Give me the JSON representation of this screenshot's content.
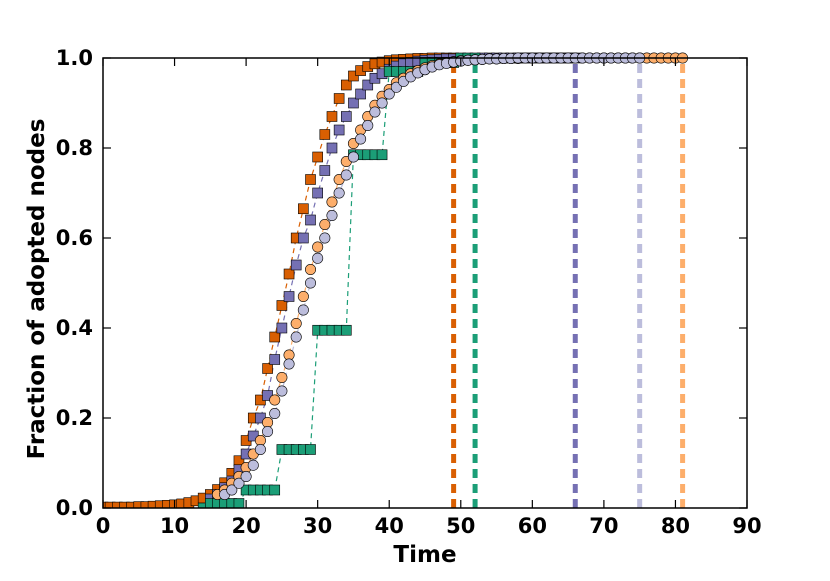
{
  "chart_data": {
    "type": "scatter",
    "title": "",
    "xlabel": "Time",
    "ylabel": "Fraction of adopted nodes",
    "xlim": [
      0,
      90
    ],
    "ylim": [
      0,
      1.0
    ],
    "xticks": [
      0,
      10,
      20,
      30,
      40,
      50,
      60,
      70,
      80,
      90
    ],
    "xtick_labels": [
      "0",
      "10",
      "20",
      "30",
      "40",
      "50",
      "60",
      "70",
      "80",
      "90"
    ],
    "yticks": [
      0,
      0.2,
      0.4,
      0.6,
      0.8,
      1.0
    ],
    "ytick_labels": [
      "0.0",
      "0.2",
      "0.4",
      "0.6",
      "0.8",
      "1.0"
    ],
    "grid": false,
    "legend": false,
    "series": [
      {
        "color": "#d95f02",
        "marker": "square",
        "values_desc": "sigmoid adoption curve",
        "x": [
          0,
          1,
          2,
          3,
          4,
          5,
          6,
          7,
          8,
          9,
          10,
          11,
          12,
          13,
          14,
          15,
          16,
          17,
          18,
          19,
          20,
          21,
          22,
          23,
          24,
          25,
          26,
          27,
          28,
          29,
          30,
          31,
          32,
          33,
          34,
          35,
          36,
          37,
          38,
          39,
          40,
          41,
          42,
          43,
          44,
          45,
          46,
          47,
          48,
          49
        ],
        "y": [
          0.002,
          0.002,
          0.002,
          0.002,
          0.002,
          0.003,
          0.003,
          0.004,
          0.005,
          0.006,
          0.007,
          0.009,
          0.012,
          0.016,
          0.022,
          0.03,
          0.041,
          0.056,
          0.077,
          0.105,
          0.15,
          0.2,
          0.24,
          0.31,
          0.38,
          0.45,
          0.52,
          0.6,
          0.665,
          0.73,
          0.78,
          0.83,
          0.87,
          0.91,
          0.94,
          0.96,
          0.972,
          0.981,
          0.987,
          0.991,
          0.994,
          0.996,
          0.997,
          0.998,
          0.999,
          0.999,
          1.0,
          1.0,
          1.0,
          1.0
        ],
        "cutoff": 49
      },
      {
        "color": "#7570b3",
        "marker": "square",
        "x": [
          15,
          16,
          17,
          18,
          19,
          20,
          21,
          22,
          23,
          24,
          25,
          26,
          27,
          28,
          29,
          30,
          31,
          32,
          33,
          34,
          35,
          36,
          37,
          38,
          39,
          40,
          41,
          42,
          43,
          44,
          45,
          46,
          47,
          48,
          49,
          50,
          51,
          52,
          53,
          54,
          55,
          56,
          57,
          58,
          59,
          60,
          61,
          62,
          63,
          64,
          65,
          66
        ],
        "y": [
          0.02,
          0.03,
          0.045,
          0.06,
          0.085,
          0.12,
          0.16,
          0.2,
          0.25,
          0.33,
          0.4,
          0.47,
          0.54,
          0.6,
          0.64,
          0.7,
          0.75,
          0.8,
          0.84,
          0.87,
          0.9,
          0.92,
          0.94,
          0.955,
          0.965,
          0.975,
          0.982,
          0.987,
          0.99,
          0.993,
          0.995,
          0.996,
          0.997,
          0.998,
          0.998,
          0.999,
          0.999,
          0.999,
          1.0,
          1.0,
          1.0,
          1.0,
          1.0,
          1.0,
          1.0,
          1.0,
          1.0,
          1.0,
          1.0,
          1.0,
          1.0,
          1.0
        ],
        "cutoff": 66
      },
      {
        "color": "#1b9e77",
        "marker": "square",
        "x": [
          14,
          15,
          16,
          17,
          18,
          19,
          20,
          21,
          22,
          23,
          24,
          25,
          26,
          27,
          28,
          29,
          30,
          31,
          32,
          33,
          34,
          35,
          36,
          37,
          38,
          39,
          40,
          41,
          42,
          43,
          44,
          45,
          46,
          47,
          48,
          49,
          50,
          51,
          52
        ],
        "y": [
          0.0,
          0.01,
          0.01,
          0.01,
          0.01,
          0.01,
          0.04,
          0.04,
          0.04,
          0.04,
          0.04,
          0.13,
          0.13,
          0.13,
          0.13,
          0.13,
          0.395,
          0.395,
          0.395,
          0.395,
          0.395,
          0.785,
          0.785,
          0.785,
          0.785,
          0.785,
          0.97,
          0.97,
          0.97,
          0.97,
          0.97,
          0.99,
          0.99,
          0.99,
          0.99,
          0.99,
          1.0,
          1.0,
          1.0
        ],
        "cutoff": 52
      },
      {
        "color": "#fdae6b",
        "marker": "circle",
        "x": [
          16,
          17,
          18,
          19,
          20,
          21,
          22,
          23,
          24,
          25,
          26,
          27,
          28,
          29,
          30,
          31,
          32,
          33,
          34,
          35,
          36,
          37,
          38,
          39,
          40,
          41,
          42,
          43,
          44,
          45,
          46,
          47,
          48,
          49,
          50,
          51,
          52,
          53,
          54,
          55,
          56,
          57,
          58,
          59,
          60,
          61,
          62,
          63,
          64,
          65,
          66,
          67,
          68,
          69,
          70,
          71,
          72,
          73,
          74,
          75,
          76,
          77,
          78,
          79,
          80,
          81
        ],
        "y": [
          0.03,
          0.04,
          0.055,
          0.07,
          0.09,
          0.12,
          0.15,
          0.19,
          0.24,
          0.29,
          0.34,
          0.41,
          0.47,
          0.53,
          0.58,
          0.63,
          0.68,
          0.73,
          0.77,
          0.81,
          0.84,
          0.87,
          0.895,
          0.915,
          0.93,
          0.945,
          0.955,
          0.965,
          0.972,
          0.978,
          0.983,
          0.987,
          0.99,
          0.992,
          0.994,
          0.995,
          0.996,
          0.997,
          0.998,
          0.998,
          0.999,
          0.999,
          0.999,
          1.0,
          1.0,
          1.0,
          1.0,
          1.0,
          1.0,
          1.0,
          1.0,
          1.0,
          1.0,
          1.0,
          1.0,
          1.0,
          1.0,
          1.0,
          1.0,
          1.0,
          1.0,
          1.0,
          1.0,
          1.0,
          1.0,
          1.0
        ],
        "cutoff": 81
      },
      {
        "color": "#bcbddc",
        "marker": "circle",
        "x": [
          17,
          18,
          19,
          20,
          21,
          22,
          23,
          24,
          25,
          26,
          27,
          28,
          29,
          30,
          31,
          32,
          33,
          34,
          35,
          36,
          37,
          38,
          39,
          40,
          41,
          42,
          43,
          44,
          45,
          46,
          47,
          48,
          49,
          50,
          51,
          52,
          53,
          54,
          55,
          56,
          57,
          58,
          59,
          60,
          61,
          62,
          63,
          64,
          65,
          66,
          67,
          68,
          69,
          70,
          71,
          72,
          73,
          74,
          75
        ],
        "y": [
          0.03,
          0.04,
          0.055,
          0.07,
          0.095,
          0.13,
          0.17,
          0.21,
          0.26,
          0.32,
          0.38,
          0.44,
          0.5,
          0.555,
          0.6,
          0.65,
          0.7,
          0.74,
          0.78,
          0.82,
          0.85,
          0.88,
          0.9,
          0.92,
          0.935,
          0.948,
          0.958,
          0.967,
          0.974,
          0.98,
          0.985,
          0.988,
          0.991,
          0.993,
          0.995,
          0.996,
          0.997,
          0.998,
          0.998,
          0.999,
          0.999,
          1.0,
          1.0,
          1.0,
          1.0,
          1.0,
          1.0,
          1.0,
          1.0,
          1.0,
          1.0,
          1.0,
          1.0,
          1.0,
          1.0,
          1.0,
          1.0,
          1.0,
          1.0
        ],
        "cutoff": 75
      }
    ]
  }
}
